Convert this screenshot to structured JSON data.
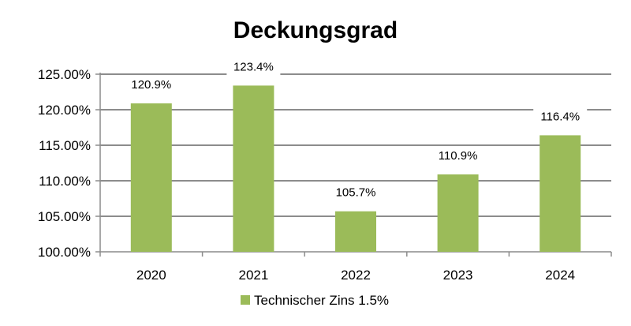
{
  "chart_data": {
    "type": "bar",
    "title": "Deckungsgrad",
    "categories": [
      "2020",
      "2021",
      "2022",
      "2023",
      "2024"
    ],
    "series": [
      {
        "name": "Technischer Zins 1.5%",
        "values": [
          120.9,
          123.4,
          105.7,
          110.9,
          116.4
        ],
        "labels": [
          "120.9%",
          "123.4%",
          "105.7%",
          "110.9%",
          "116.4%"
        ],
        "color": "#9bbb59"
      }
    ],
    "yticks": [
      100,
      105,
      110,
      115,
      120,
      125
    ],
    "ytick_labels": [
      "100.00%",
      "105.00%",
      "110.00%",
      "115.00%",
      "120.00%",
      "125.00%"
    ],
    "ylim": [
      100,
      125
    ],
    "grid": true,
    "legend_position": "bottom"
  }
}
